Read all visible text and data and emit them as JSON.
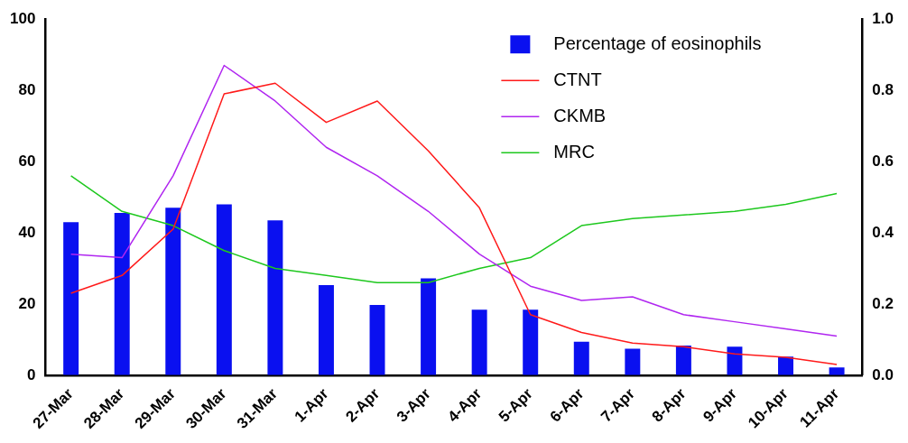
{
  "chart_data": {
    "type": "bar",
    "categories": [
      "27-Mar",
      "28-Mar",
      "29-Mar",
      "30-Mar",
      "31-Mar",
      "1-Apr",
      "2-Apr",
      "3-Apr",
      "4-Apr",
      "5-Apr",
      "6-Apr",
      "7-Apr",
      "8-Apr",
      "9-Apr",
      "10-Apr",
      "11-Apr"
    ],
    "series": [
      {
        "name": "Percentage of eosinophils",
        "color": "#0a10f0",
        "values": [
          43,
          45.6,
          47,
          48,
          43.5,
          25.3,
          19.7,
          27.2,
          18.4,
          18.4,
          9.4,
          7.4,
          8.3,
          8,
          5.2,
          2.2
        ]
      },
      {
        "name": "CTNT",
        "type": "line",
        "axis": "y2",
        "color": "#ff1a1a",
        "values": [
          0.23,
          0.28,
          0.41,
          0.79,
          0.82,
          0.71,
          0.77,
          0.63,
          0.47,
          0.17,
          0.12,
          0.09,
          0.08,
          0.06,
          0.05,
          0.03
        ]
      },
      {
        "name": "CKMB",
        "type": "line",
        "axis": "y2",
        "color": "#b026f0",
        "values": [
          0.34,
          0.33,
          0.56,
          0.87,
          0.77,
          0.64,
          0.56,
          0.46,
          0.34,
          0.25,
          0.21,
          0.22,
          0.17,
          0.15,
          0.13,
          0.11
        ]
      },
      {
        "name": "MRC",
        "type": "line",
        "axis": "y2",
        "color": "#1ec81e",
        "values": [
          0.56,
          0.46,
          0.42,
          0.35,
          0.3,
          0.28,
          0.26,
          0.26,
          0.3,
          0.33,
          0.42,
          0.44,
          0.45,
          0.46,
          0.48,
          0.51
        ]
      }
    ],
    "ylim": [
      0,
      100
    ],
    "yticks": [
      0,
      20,
      40,
      60,
      80,
      100
    ],
    "y2lim": [
      0,
      1
    ],
    "y2ticks": [
      {
        "value": 0,
        "label": "0.0"
      },
      {
        "value": 0.2,
        "label": "0.2"
      },
      {
        "value": 0.4,
        "label": "0.4"
      },
      {
        "value": 0.6,
        "label": "0.6"
      },
      {
        "value": 0.8,
        "label": "0.8"
      },
      {
        "value": 1,
        "label": "1.0"
      }
    ],
    "grid": false,
    "legend": "top right",
    "marker": "none",
    "line_style": "solid"
  }
}
